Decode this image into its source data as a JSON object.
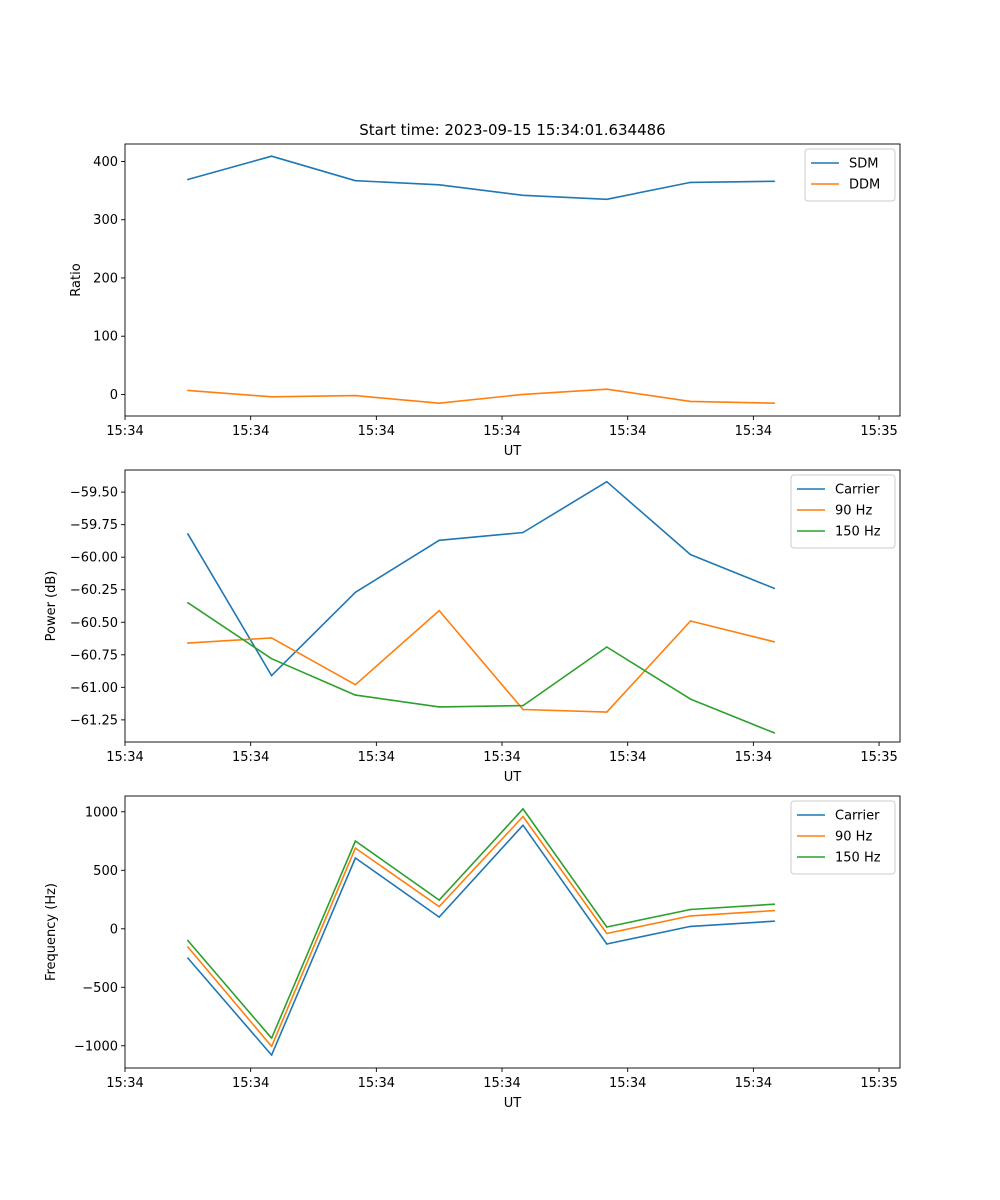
{
  "chart_data": [
    {
      "type": "line",
      "title": "Start time: 2023-09-15 15:34:01.634486",
      "xlabel": "UT",
      "ylabel": "Ratio",
      "x": [
        0,
        1,
        2,
        3,
        4,
        5,
        6,
        7
      ],
      "xlim": [
        -0.75,
        8.5
      ],
      "xticks": [
        -0.75,
        0.75,
        2.25,
        3.75,
        5.25,
        6.75,
        8.25
      ],
      "xtick_labels": [
        "15:34",
        "15:34",
        "15:34",
        "15:34",
        "15:34",
        "15:34",
        "15:35"
      ],
      "ylim": [
        -37,
        430
      ],
      "yticks": [
        0,
        100,
        200,
        300,
        400
      ],
      "ytick_labels": [
        "0",
        "100",
        "200",
        "300",
        "400"
      ],
      "legend_position": "top-right",
      "series": [
        {
          "name": "SDM",
          "color": "#1f77b4",
          "values": [
            369,
            409,
            367,
            360,
            342,
            335,
            364,
            366
          ]
        },
        {
          "name": "DDM",
          "color": "#ff7f0e",
          "values": [
            7,
            -4,
            -2,
            -15,
            0,
            9,
            -12,
            -15
          ]
        }
      ]
    },
    {
      "type": "line",
      "title": "",
      "xlabel": "UT",
      "ylabel": "Power (dB)",
      "x": [
        0,
        1,
        2,
        3,
        4,
        5,
        6,
        7
      ],
      "xlim": [
        -0.75,
        8.5
      ],
      "xticks": [
        -0.75,
        0.75,
        2.25,
        3.75,
        5.25,
        6.75,
        8.25
      ],
      "xtick_labels": [
        "15:34",
        "15:34",
        "15:34",
        "15:34",
        "15:34",
        "15:34",
        "15:35"
      ],
      "ylim": [
        -61.42,
        -59.33
      ],
      "yticks": [
        -61.25,
        -61.0,
        -60.75,
        -60.5,
        -60.25,
        -60.0,
        -59.75,
        -59.5
      ],
      "ytick_labels": [
        "−61.25",
        "−61.00",
        "−60.75",
        "−60.50",
        "−60.25",
        "−60.00",
        "−59.75",
        "−59.50"
      ],
      "legend_position": "top-right",
      "series": [
        {
          "name": "Carrier",
          "color": "#1f77b4",
          "values": [
            -59.82,
            -60.91,
            -60.27,
            -59.87,
            -59.81,
            -59.42,
            -59.98,
            -60.24
          ]
        },
        {
          "name": "90 Hz",
          "color": "#ff7f0e",
          "values": [
            -60.66,
            -60.62,
            -60.98,
            -60.41,
            -61.17,
            -61.19,
            -60.49,
            -60.65
          ]
        },
        {
          "name": "150 Hz",
          "color": "#2ca02c",
          "values": [
            -60.35,
            -60.78,
            -61.06,
            -61.15,
            -61.14,
            -60.69,
            -61.09,
            -61.35
          ]
        }
      ]
    },
    {
      "type": "line",
      "title": "",
      "xlabel": "UT",
      "ylabel": "Frequency (Hz)",
      "x": [
        0,
        1,
        2,
        3,
        4,
        5,
        6,
        7
      ],
      "xlim": [
        -0.75,
        8.5
      ],
      "xticks": [
        -0.75,
        0.75,
        2.25,
        3.75,
        5.25,
        6.75,
        8.25
      ],
      "xtick_labels": [
        "15:34",
        "15:34",
        "15:34",
        "15:34",
        "15:34",
        "15:34",
        "15:35"
      ],
      "ylim": [
        -1190,
        1135
      ],
      "yticks": [
        -1000,
        -500,
        0,
        500,
        1000
      ],
      "ytick_labels": [
        "−1000",
        "−500",
        "0",
        "500",
        "1000"
      ],
      "legend_position": "top-right",
      "series": [
        {
          "name": "Carrier",
          "color": "#1f77b4",
          "values": [
            -250,
            -1080,
            605,
            100,
            885,
            -130,
            20,
            65
          ]
        },
        {
          "name": "90 Hz",
          "color": "#ff7f0e",
          "values": [
            -155,
            -1005,
            690,
            190,
            960,
            -40,
            110,
            155
          ]
        },
        {
          "name": "150 Hz",
          "color": "#2ca02c",
          "values": [
            -100,
            -935,
            750,
            245,
            1025,
            15,
            165,
            210
          ]
        }
      ]
    }
  ]
}
